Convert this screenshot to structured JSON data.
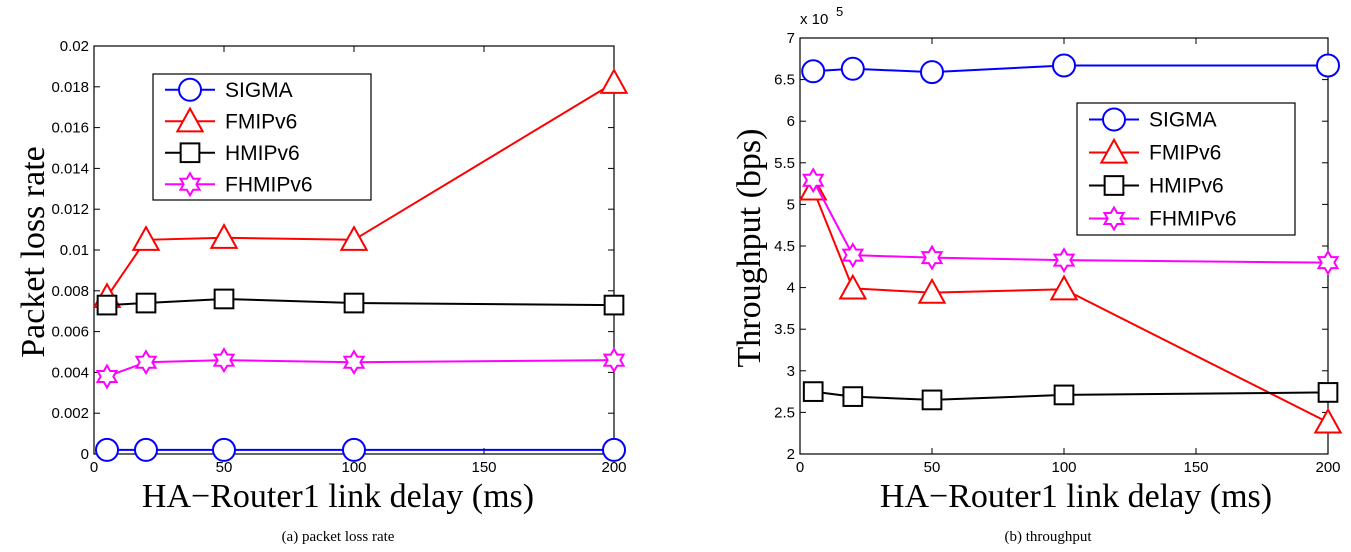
{
  "chart_data": [
    {
      "type": "line",
      "xlabel": "HA−Router1 link delay (ms)",
      "ylabel": "Packet loss rate",
      "caption": "(a) packet loss rate",
      "x": [
        5,
        20,
        50,
        100,
        200
      ],
      "xlim": [
        0,
        200
      ],
      "ylim": [
        0,
        0.02
      ],
      "xticks": [
        0,
        50,
        100,
        150,
        200
      ],
      "xtick_labels": [
        "0",
        "50",
        "100",
        "150",
        "200"
      ],
      "yticks": [
        0,
        0.002,
        0.004,
        0.006,
        0.008,
        0.01,
        0.012,
        0.014,
        0.016,
        0.018,
        0.02
      ],
      "ytick_labels": [
        "0",
        "0.002",
        "0.004",
        "0.006",
        "0.008",
        "0.01",
        "0.012",
        "0.014",
        "0.016",
        "0.018",
        "0.02"
      ],
      "grid": false,
      "legend_position": "top-center",
      "series": [
        {
          "name": "SIGMA",
          "color": "#0000ff",
          "marker": "circle",
          "values": [
            0.0002,
            0.0002,
            0.0002,
            0.0002,
            0.0002
          ]
        },
        {
          "name": "FMIPv6",
          "color": "#ff0000",
          "marker": "triangle",
          "values": [
            0.0077,
            0.0105,
            0.0106,
            0.0105,
            0.0182
          ]
        },
        {
          "name": "HMIPv6",
          "color": "#000000",
          "marker": "square",
          "values": [
            0.0073,
            0.0074,
            0.0076,
            0.0074,
            0.0073
          ]
        },
        {
          "name": "FHMIPv6",
          "color": "#ff00ff",
          "marker": "hexagram",
          "values": [
            0.0038,
            0.0045,
            0.0046,
            0.0045,
            0.0046
          ]
        }
      ]
    },
    {
      "type": "line",
      "xlabel": "HA−Router1 link delay (ms)",
      "ylabel": "Throughput (bps)",
      "caption": "(b) throughput",
      "y_multiplier_label": "x 10",
      "y_multiplier_exp": "5",
      "x": [
        5,
        20,
        50,
        100,
        200
      ],
      "xlim": [
        0,
        200
      ],
      "ylim": [
        2,
        7
      ],
      "xticks": [
        0,
        50,
        100,
        150,
        200
      ],
      "xtick_labels": [
        "0",
        "50",
        "100",
        "150",
        "200"
      ],
      "yticks": [
        2,
        2.5,
        3,
        3.5,
        4,
        4.5,
        5,
        5.5,
        6,
        6.5,
        7
      ],
      "ytick_labels": [
        "2",
        "2.5",
        "3",
        "3.5",
        "4",
        "4.5",
        "5",
        "5.5",
        "6",
        "6.5",
        "7"
      ],
      "grid": false,
      "legend_position": "top-right",
      "series": [
        {
          "name": "SIGMA",
          "color": "#0000ff",
          "marker": "circle",
          "values": [
            6.6,
            6.63,
            6.59,
            6.67,
            6.67
          ]
        },
        {
          "name": "FMIPv6",
          "color": "#ff0000",
          "marker": "triangle",
          "values": [
            5.18,
            3.99,
            3.94,
            3.98,
            2.38
          ]
        },
        {
          "name": "HMIPv6",
          "color": "#000000",
          "marker": "square",
          "values": [
            2.75,
            2.69,
            2.65,
            2.71,
            2.74
          ]
        },
        {
          "name": "FHMIPv6",
          "color": "#ff00ff",
          "marker": "hexagram",
          "values": [
            5.29,
            4.39,
            4.36,
            4.33,
            4.3
          ]
        }
      ]
    }
  ]
}
